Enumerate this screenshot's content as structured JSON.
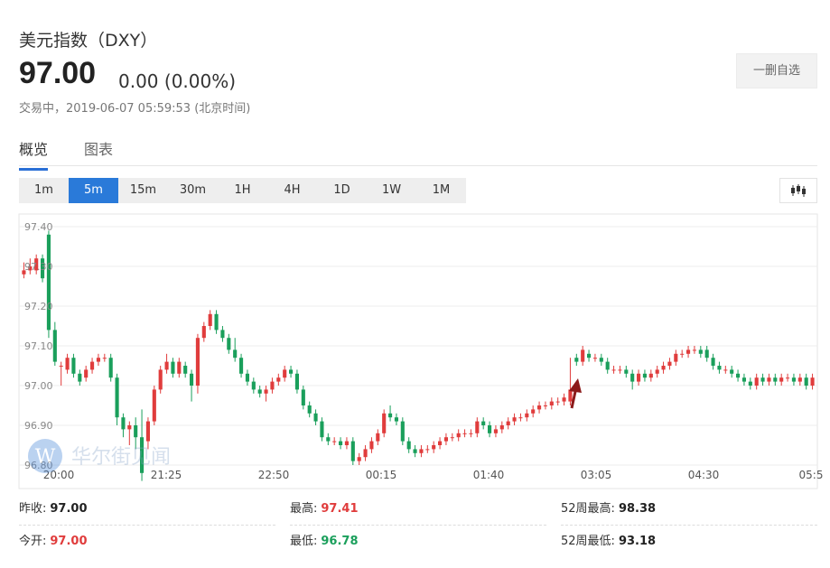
{
  "header": {
    "title": "美元指数（DXY）",
    "price": "97.00",
    "change": "0.00 (0.00%)",
    "status": "交易中，2019-06-07 05:59:53 (北京时间)",
    "watch_label": "一删自选"
  },
  "tabs": [
    {
      "label": "概览",
      "active": true
    },
    {
      "label": "图表",
      "active": false
    }
  ],
  "periods": [
    {
      "label": "1m",
      "active": false
    },
    {
      "label": "5m",
      "active": true
    },
    {
      "label": "15m",
      "active": false
    },
    {
      "label": "30m",
      "active": false
    },
    {
      "label": "1H",
      "active": false
    },
    {
      "label": "4H",
      "active": false
    },
    {
      "label": "1D",
      "active": false
    },
    {
      "label": "1W",
      "active": false
    },
    {
      "label": "1M",
      "active": false
    }
  ],
  "watermark": "华尔街见闻",
  "colors": {
    "up": "#e03c3c",
    "down": "#1a9f5b",
    "accent": "#2a7ad9",
    "arrow": "#8b1a1a"
  },
  "chart_data": {
    "type": "candlestick",
    "y_ticks": [
      "97.40",
      "97.30",
      "97.20",
      "97.10",
      "97.00",
      "96.90",
      "96.80"
    ],
    "x_ticks": [
      "20:00",
      "21:25",
      "22:50",
      "00:15",
      "01:40",
      "03:05",
      "04:30",
      "05:5"
    ],
    "ylim": [
      96.8,
      97.4
    ],
    "grid": true,
    "series": [
      [
        97.28,
        97.29,
        97.31,
        97.27
      ],
      [
        97.29,
        97.3,
        97.32,
        97.28
      ],
      [
        97.29,
        97.32,
        97.33,
        97.28
      ],
      [
        97.32,
        97.27,
        97.33,
        97.26
      ],
      [
        97.38,
        97.14,
        97.39,
        97.12
      ],
      [
        97.14,
        97.06,
        97.16,
        97.05
      ],
      [
        97.05,
        97.05,
        97.06,
        97.0
      ],
      [
        97.04,
        97.07,
        97.08,
        97.03
      ],
      [
        97.07,
        97.03,
        97.08,
        97.02
      ],
      [
        97.03,
        97.01,
        97.04,
        97.0
      ],
      [
        97.02,
        97.04,
        97.05,
        97.01
      ],
      [
        97.04,
        97.06,
        97.07,
        97.03
      ],
      [
        97.06,
        97.07,
        97.08,
        97.05
      ],
      [
        97.07,
        97.07,
        97.08,
        97.06
      ],
      [
        97.07,
        97.02,
        97.08,
        97.01
      ],
      [
        97.02,
        96.92,
        97.03,
        96.9
      ],
      [
        96.92,
        96.89,
        96.93,
        96.87
      ],
      [
        96.89,
        96.9,
        96.91,
        96.85
      ],
      [
        96.9,
        96.87,
        96.92,
        96.84
      ],
      [
        96.87,
        96.78,
        96.94,
        96.76
      ],
      [
        96.86,
        96.91,
        96.92,
        96.84
      ],
      [
        96.91,
        96.99,
        97.0,
        96.9
      ],
      [
        96.99,
        97.04,
        97.05,
        96.98
      ],
      [
        97.04,
        97.06,
        97.08,
        97.03
      ],
      [
        97.06,
        97.03,
        97.07,
        97.02
      ],
      [
        97.03,
        97.06,
        97.07,
        97.02
      ],
      [
        97.05,
        97.03,
        97.06,
        97.02
      ],
      [
        97.03,
        97.0,
        97.04,
        96.96
      ],
      [
        97.0,
        97.12,
        97.13,
        96.98
      ],
      [
        97.12,
        97.15,
        97.16,
        97.11
      ],
      [
        97.15,
        97.18,
        97.19,
        97.14
      ],
      [
        97.18,
        97.14,
        97.19,
        97.13
      ],
      [
        97.14,
        97.12,
        97.15,
        97.11
      ],
      [
        97.12,
        97.09,
        97.13,
        97.08
      ],
      [
        97.09,
        97.07,
        97.12,
        97.06
      ],
      [
        97.07,
        97.03,
        97.08,
        97.02
      ],
      [
        97.03,
        97.01,
        97.04,
        97.0
      ],
      [
        97.01,
        96.99,
        97.02,
        96.98
      ],
      [
        96.99,
        96.98,
        97.0,
        96.97
      ],
      [
        96.98,
        96.99,
        97.0,
        96.96
      ],
      [
        96.99,
        97.01,
        97.02,
        96.98
      ],
      [
        97.01,
        97.02,
        97.03,
        97.0
      ],
      [
        97.02,
        97.04,
        97.05,
        97.01
      ],
      [
        97.04,
        97.03,
        97.05,
        97.02
      ],
      [
        97.03,
        96.99,
        97.04,
        96.98
      ],
      [
        96.99,
        96.95,
        97.0,
        96.94
      ],
      [
        96.95,
        96.93,
        96.96,
        96.92
      ],
      [
        96.93,
        96.91,
        96.94,
        96.9
      ],
      [
        96.91,
        96.87,
        96.92,
        96.86
      ],
      [
        96.87,
        96.86,
        96.88,
        96.85
      ],
      [
        96.86,
        96.86,
        96.87,
        96.85
      ],
      [
        96.86,
        96.85,
        96.87,
        96.84
      ],
      [
        96.85,
        96.86,
        96.87,
        96.84
      ],
      [
        96.86,
        96.81,
        96.87,
        96.8
      ],
      [
        96.81,
        96.82,
        96.83,
        96.8
      ],
      [
        96.82,
        96.84,
        96.85,
        96.81
      ],
      [
        96.84,
        96.86,
        96.87,
        96.83
      ],
      [
        96.86,
        96.88,
        96.89,
        96.85
      ],
      [
        96.88,
        96.93,
        96.94,
        96.87
      ],
      [
        96.93,
        96.92,
        96.95,
        96.91
      ],
      [
        96.92,
        96.91,
        96.93,
        96.9
      ],
      [
        96.91,
        96.86,
        96.92,
        96.85
      ],
      [
        96.86,
        96.84,
        96.87,
        96.83
      ],
      [
        96.84,
        96.83,
        96.85,
        96.82
      ],
      [
        96.83,
        96.84,
        96.85,
        96.82
      ],
      [
        96.84,
        96.84,
        96.85,
        96.83
      ],
      [
        96.84,
        96.85,
        96.86,
        96.83
      ],
      [
        96.85,
        96.86,
        96.87,
        96.84
      ],
      [
        96.86,
        96.87,
        96.88,
        96.85
      ],
      [
        96.87,
        96.87,
        96.88,
        96.86
      ],
      [
        96.87,
        96.88,
        96.89,
        96.86
      ],
      [
        96.88,
        96.88,
        96.89,
        96.87
      ],
      [
        96.88,
        96.88,
        96.89,
        96.87
      ],
      [
        96.88,
        96.91,
        96.92,
        96.87
      ],
      [
        96.91,
        96.9,
        96.92,
        96.89
      ],
      [
        96.9,
        96.88,
        96.91,
        96.87
      ],
      [
        96.88,
        96.89,
        96.9,
        96.87
      ],
      [
        96.89,
        96.9,
        96.91,
        96.88
      ],
      [
        96.9,
        96.91,
        96.92,
        96.89
      ],
      [
        96.91,
        96.92,
        96.93,
        96.9
      ],
      [
        96.92,
        96.92,
        96.93,
        96.91
      ],
      [
        96.92,
        96.93,
        96.94,
        96.91
      ],
      [
        96.93,
        96.94,
        96.95,
        96.92
      ],
      [
        96.94,
        96.95,
        96.96,
        96.93
      ],
      [
        96.95,
        96.95,
        96.96,
        96.94
      ],
      [
        96.95,
        96.96,
        96.97,
        96.94
      ],
      [
        96.96,
        96.96,
        96.97,
        96.95
      ],
      [
        96.96,
        96.97,
        96.98,
        96.95
      ],
      [
        96.96,
        96.99,
        97.07,
        96.95
      ],
      [
        97.07,
        97.06,
        97.08,
        97.05
      ],
      [
        97.06,
        97.09,
        97.1,
        97.05
      ],
      [
        97.08,
        97.07,
        97.09,
        97.06
      ],
      [
        97.07,
        97.07,
        97.08,
        97.06
      ],
      [
        97.07,
        97.06,
        97.08,
        97.05
      ],
      [
        97.06,
        97.04,
        97.07,
        97.03
      ],
      [
        97.04,
        97.04,
        97.05,
        97.03
      ],
      [
        97.04,
        97.04,
        97.05,
        97.03
      ],
      [
        97.04,
        97.03,
        97.05,
        97.02
      ],
      [
        97.03,
        97.01,
        97.04,
        96.99
      ],
      [
        97.01,
        97.03,
        97.04,
        97.0
      ],
      [
        97.03,
        97.02,
        97.04,
        97.01
      ],
      [
        97.02,
        97.03,
        97.04,
        97.01
      ],
      [
        97.03,
        97.04,
        97.05,
        97.02
      ],
      [
        97.04,
        97.05,
        97.06,
        97.03
      ],
      [
        97.05,
        97.06,
        97.07,
        97.04
      ],
      [
        97.06,
        97.08,
        97.09,
        97.05
      ],
      [
        97.08,
        97.08,
        97.09,
        97.07
      ],
      [
        97.08,
        97.09,
        97.1,
        97.07
      ],
      [
        97.09,
        97.09,
        97.1,
        97.08
      ],
      [
        97.09,
        97.08,
        97.1,
        97.07
      ],
      [
        97.09,
        97.07,
        97.1,
        97.06
      ],
      [
        97.07,
        97.05,
        97.08,
        97.04
      ],
      [
        97.05,
        97.04,
        97.06,
        97.03
      ],
      [
        97.04,
        97.04,
        97.05,
        97.03
      ],
      [
        97.04,
        97.03,
        97.05,
        97.02
      ],
      [
        97.03,
        97.02,
        97.04,
        97.01
      ],
      [
        97.02,
        97.01,
        97.03,
        97.0
      ],
      [
        97.01,
        97.0,
        97.02,
        96.99
      ],
      [
        97.0,
        97.02,
        97.03,
        96.99
      ],
      [
        97.02,
        97.01,
        97.03,
        97.0
      ],
      [
        97.01,
        97.02,
        97.03,
        97.0
      ],
      [
        97.02,
        97.01,
        97.03,
        97.0
      ],
      [
        97.01,
        97.02,
        97.03,
        97.0
      ],
      [
        97.02,
        97.02,
        97.03,
        97.01
      ],
      [
        97.02,
        97.01,
        97.03,
        97.0
      ],
      [
        97.01,
        97.02,
        97.03,
        97.0
      ],
      [
        97.02,
        97.0,
        97.03,
        96.99
      ],
      [
        97.0,
        97.02,
        97.03,
        96.99
      ]
    ]
  },
  "stats": [
    {
      "label": "昨收:",
      "value": "97.00",
      "tone": "neutral"
    },
    {
      "label": "最高:",
      "value": "97.41",
      "tone": "up"
    },
    {
      "label": "52周最高:",
      "value": "98.38",
      "tone": "neutral"
    },
    {
      "label": "今开:",
      "value": "97.00",
      "tone": "up"
    },
    {
      "label": "最低:",
      "value": "96.78",
      "tone": "down"
    },
    {
      "label": "52周最低:",
      "value": "93.18",
      "tone": "neutral"
    }
  ]
}
